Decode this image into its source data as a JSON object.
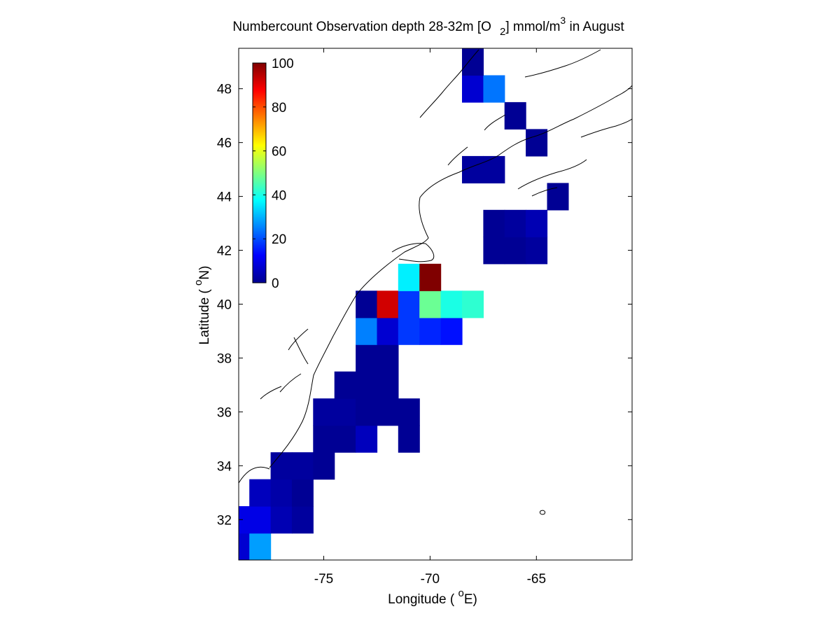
{
  "chart_data": {
    "type": "heatmap",
    "title": {
      "prefix": "Numbercount Observation depth 28-32m [O",
      "sub": "2",
      "mid": "] mmol/m",
      "sup": "3",
      "suffix": " in August"
    },
    "xlabel": {
      "prefix": "Longitude ( ",
      "sup": "o",
      "suffix": "E)"
    },
    "ylabel": {
      "prefix": "Latitude ( ",
      "sup": "o",
      "suffix": "N)"
    },
    "xlim": [
      -79,
      -60.5
    ],
    "ylim": [
      30.5,
      49.5
    ],
    "xticks": [
      -75,
      -70,
      -65
    ],
    "yticks": [
      32,
      34,
      36,
      38,
      40,
      42,
      44,
      46,
      48
    ],
    "colorbar": {
      "min": 0,
      "max": 100,
      "ticks": [
        0,
        20,
        40,
        60,
        80,
        100
      ],
      "colormap": "jet",
      "placement": "top-left inside axes"
    },
    "cell_size_deg": 1,
    "grid_origin": {
      "lon": -79.5,
      "lat": 30.5
    },
    "cells": [
      [
        -79,
        31,
        8
      ],
      [
        -78,
        31,
        28
      ],
      [
        -79,
        32,
        10
      ],
      [
        -78,
        32,
        10
      ],
      [
        -77,
        32,
        5
      ],
      [
        -76,
        32,
        3
      ],
      [
        -78,
        33,
        6
      ],
      [
        -77,
        33,
        4
      ],
      [
        -76,
        33,
        2
      ],
      [
        -77,
        34,
        3
      ],
      [
        -76,
        34,
        3
      ],
      [
        -75,
        34,
        2
      ],
      [
        -75,
        35,
        2
      ],
      [
        -74,
        35,
        2
      ],
      [
        -73,
        35,
        6
      ],
      [
        -71,
        35,
        2
      ],
      [
        -75,
        36,
        3
      ],
      [
        -74,
        36,
        3
      ],
      [
        -73,
        36,
        2
      ],
      [
        -72,
        36,
        2
      ],
      [
        -71,
        36,
        2
      ],
      [
        -74,
        37,
        2
      ],
      [
        -73,
        37,
        2
      ],
      [
        -72,
        37,
        2
      ],
      [
        -73,
        38,
        2
      ],
      [
        -72,
        38,
        2
      ],
      [
        -73,
        39,
        25
      ],
      [
        -72,
        39,
        8
      ],
      [
        -71,
        39,
        18
      ],
      [
        -70,
        39,
        16
      ],
      [
        -69,
        39,
        14
      ],
      [
        -73,
        40,
        2
      ],
      [
        -72,
        40,
        92
      ],
      [
        -71,
        40,
        18
      ],
      [
        -70,
        40,
        48
      ],
      [
        -69,
        40,
        40
      ],
      [
        -68,
        40,
        42
      ],
      [
        -71,
        41,
        36
      ],
      [
        -70,
        41,
        100
      ],
      [
        -67,
        42,
        2
      ],
      [
        -66,
        42,
        2
      ],
      [
        -65,
        42,
        3
      ],
      [
        -67,
        43,
        2
      ],
      [
        -66,
        43,
        3
      ],
      [
        -65,
        43,
        5
      ],
      [
        -64,
        44,
        2
      ],
      [
        -68,
        45,
        3
      ],
      [
        -67,
        45,
        3
      ],
      [
        -65,
        46,
        2
      ],
      [
        -66,
        47,
        2
      ],
      [
        -68,
        48,
        8
      ],
      [
        -67,
        48,
        24
      ],
      [
        -68,
        49,
        2
      ]
    ],
    "grid": false
  }
}
